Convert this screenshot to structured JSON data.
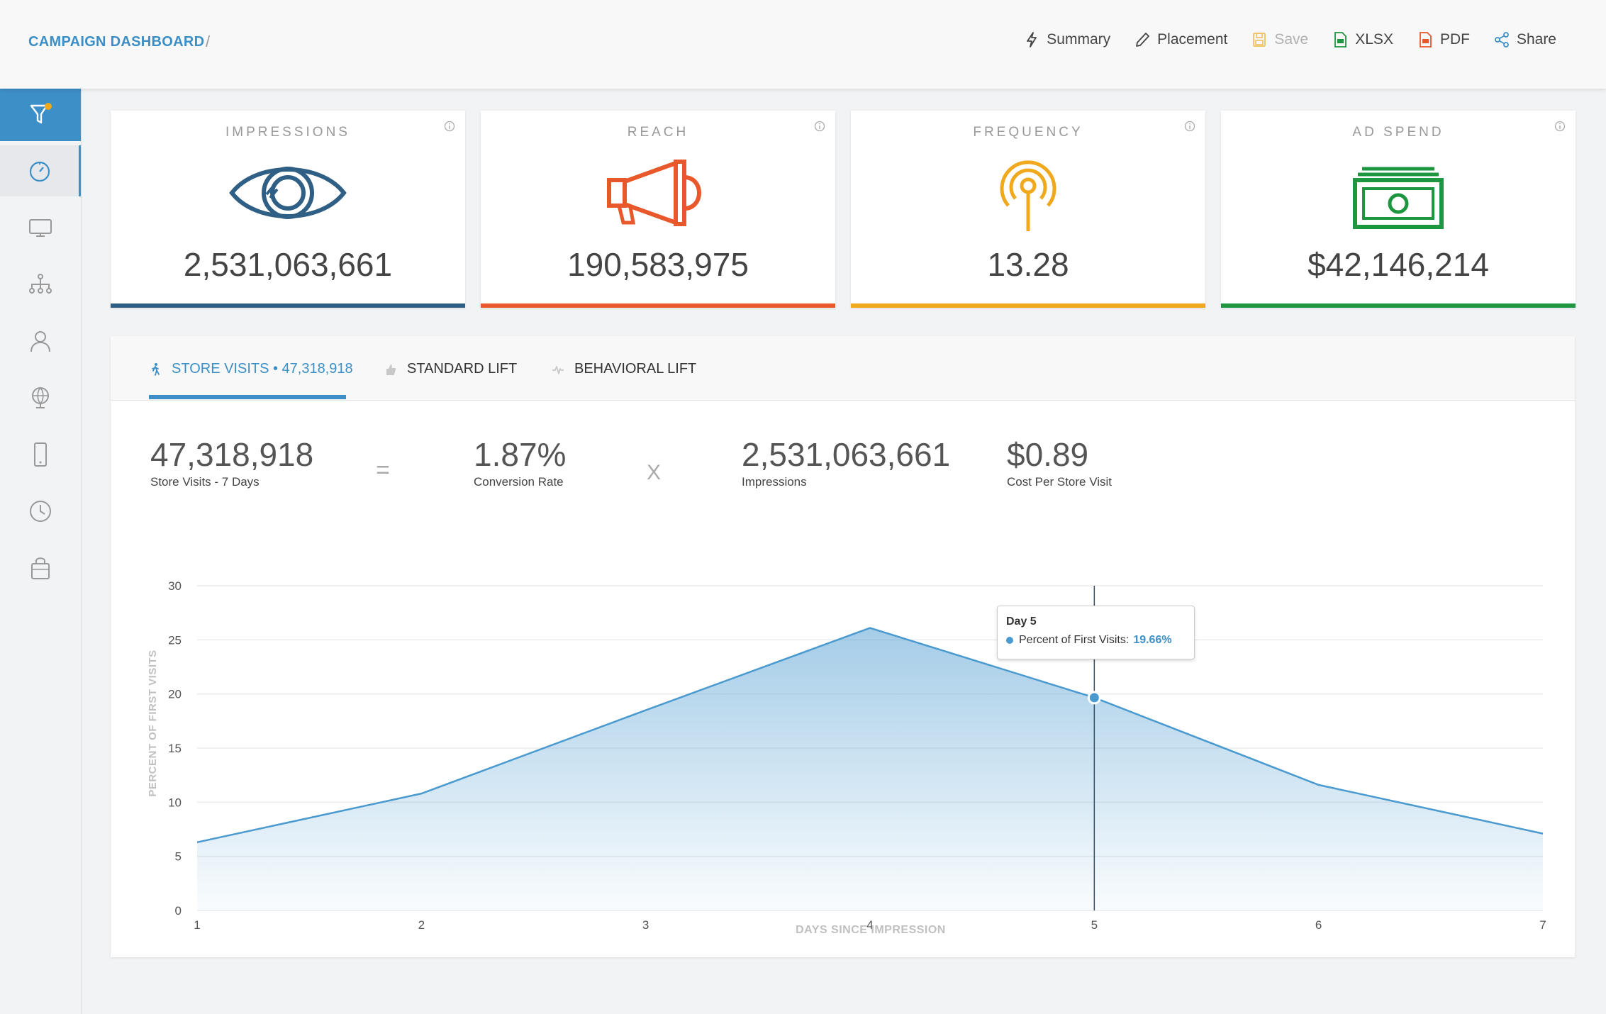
{
  "header": {
    "breadcrumb": "CAMPAIGN DASHBOARD",
    "separator": "/",
    "toolbar": [
      {
        "label": "Summary",
        "icon": "bolt-icon"
      },
      {
        "label": "Placement",
        "icon": "pencil-icon"
      },
      {
        "label": "Save",
        "icon": "floppy-icon",
        "disabled": true
      },
      {
        "label": "XLSX",
        "icon": "xlsx-file-icon"
      },
      {
        "label": "PDF",
        "icon": "pdf-file-icon"
      },
      {
        "label": "Share",
        "icon": "share-icon"
      }
    ]
  },
  "sidebar": {
    "items": [
      "filter-icon",
      "dashboard-icon",
      "monitor-icon",
      "hierarchy-icon",
      "user-icon",
      "globe-icon",
      "mobile-icon",
      "clock-icon",
      "shopping-bag-icon"
    ],
    "active": "dashboard-icon"
  },
  "kpis": [
    {
      "label": "IMPRESSIONS",
      "value": "2,531,063,661",
      "color": "#2f5f85",
      "icon": "eye-icon"
    },
    {
      "label": "REACH",
      "value": "190,583,975",
      "color": "#e8582a",
      "icon": "megaphone-icon"
    },
    {
      "label": "FREQUENCY",
      "value": "13.28",
      "color": "#f0a81c",
      "icon": "broadcast-icon"
    },
    {
      "label": "AD SPEND",
      "value": "$42,146,214",
      "color": "#1e9640",
      "icon": "money-icon"
    }
  ],
  "tabs": [
    {
      "label": "STORE VISITS • 47,318,918",
      "icon": "walking-icon",
      "active": true
    },
    {
      "label": "STANDARD LIFT",
      "icon": "thumbs-up-icon",
      "active": false
    },
    {
      "label": "BEHAVIORAL LIFT",
      "icon": "pulse-icon",
      "active": false
    }
  ],
  "metrics": {
    "store_visits": {
      "value": "47,318,918",
      "label": "Store Visits - 7 Days"
    },
    "equals": "=",
    "conversion": {
      "value": "1.87%",
      "label": "Conversion Rate"
    },
    "times": "X",
    "impressions": {
      "value": "2,531,063,661",
      "label": "Impressions"
    },
    "cost": {
      "value": "$0.89",
      "label": "Cost Per Store Visit"
    }
  },
  "tooltip": {
    "title": "Day 5",
    "series": "Percent of First Visits:",
    "value": "19.66%"
  },
  "chart_data": {
    "type": "area",
    "x": [
      1,
      2,
      3,
      4,
      5,
      6,
      7
    ],
    "series": [
      {
        "name": "Percent of First Visits",
        "values": [
          6.3,
          10.8,
          18.5,
          26.1,
          19.66,
          11.6,
          7.1
        ]
      }
    ],
    "xlabel": "DAYS SINCE IMPRESSION",
    "ylabel": "PERCENT OF FIRST VISITS",
    "ylim": [
      0,
      30
    ],
    "yticks": [
      0,
      5,
      10,
      15,
      20,
      25,
      30
    ],
    "xticks": [
      1,
      2,
      3,
      4,
      5,
      6,
      7
    ],
    "highlight_x": 5,
    "color": "#4a9ad0",
    "grid": true
  }
}
